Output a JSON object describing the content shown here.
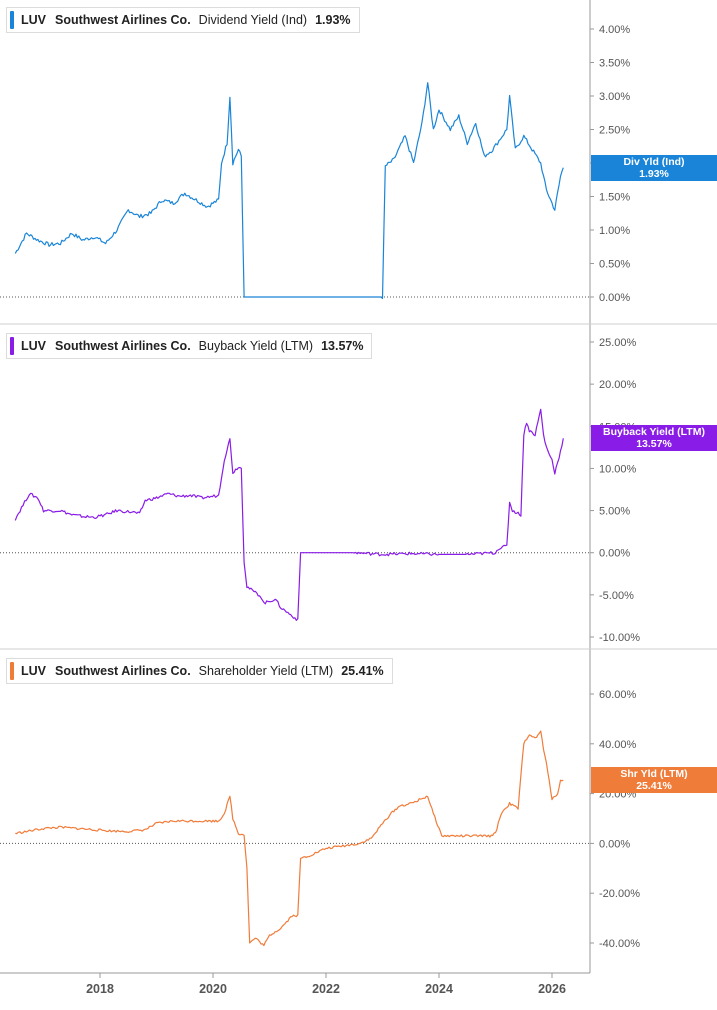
{
  "colors": {
    "dividend": "#1a85d8",
    "buyback": "#8a1ce8",
    "shareholder": "#f07c3a",
    "grid": "#d0d0d0",
    "axis_text": "#555555"
  },
  "x_axis": {
    "ticks": [
      "2018",
      "2020",
      "2022",
      "2024",
      "2026"
    ]
  },
  "panels": [
    {
      "legend": {
        "ticker": "LUV",
        "company": "Southwest Airlines Co.",
        "metric": "Dividend Yield (Ind)",
        "value": "1.93%"
      },
      "flag": {
        "label": "Div Yld (Ind)",
        "value": "1.93%"
      },
      "y_ticks": [
        "4.00%",
        "3.50%",
        "3.00%",
        "2.50%",
        "2.00%",
        "1.50%",
        "1.00%",
        "0.50%",
        "0.00%"
      ]
    },
    {
      "legend": {
        "ticker": "LUV",
        "company": "Southwest Airlines Co.",
        "metric": "Buyback Yield (LTM)",
        "value": "13.57%"
      },
      "flag": {
        "label": "Buyback Yield (LTM)",
        "value": "13.57%"
      },
      "y_ticks": [
        "25.00%",
        "20.00%",
        "15.00%",
        "10.00%",
        "5.00%",
        "0.00%",
        "-5.00%",
        "-10.00%"
      ]
    },
    {
      "legend": {
        "ticker": "LUV",
        "company": "Southwest Airlines Co.",
        "metric": "Shareholder Yield (LTM)",
        "value": "25.41%"
      },
      "flag": {
        "label": "Shr Yld (LTM)",
        "value": "25.41%"
      },
      "y_ticks": [
        "60.00%",
        "40.00%",
        "20.00%",
        "0.00%",
        "-20.00%",
        "-40.00%"
      ]
    }
  ],
  "chart_data": [
    {
      "type": "line",
      "title": "LUV Southwest Airlines Co. Dividend Yield (Ind)",
      "ylim": [
        0,
        4.2
      ],
      "series": [
        {
          "name": "Dividend Yield (Ind)",
          "points": [
            [
              2016.5,
              0.65
            ],
            [
              2016.7,
              0.95
            ],
            [
              2016.9,
              0.85
            ],
            [
              2017.1,
              0.78
            ],
            [
              2017.3,
              0.8
            ],
            [
              2017.5,
              0.95
            ],
            [
              2017.7,
              0.85
            ],
            [
              2017.9,
              0.9
            ],
            [
              2018.1,
              0.8
            ],
            [
              2018.3,
              1.0
            ],
            [
              2018.5,
              1.3
            ],
            [
              2018.7,
              1.2
            ],
            [
              2018.9,
              1.25
            ],
            [
              2019.1,
              1.45
            ],
            [
              2019.3,
              1.4
            ],
            [
              2019.5,
              1.55
            ],
            [
              2019.7,
              1.45
            ],
            [
              2019.9,
              1.35
            ],
            [
              2020.1,
              1.45
            ],
            [
              2020.15,
              2.0
            ],
            [
              2020.25,
              2.3
            ],
            [
              2020.3,
              3.0
            ],
            [
              2020.35,
              2.0
            ],
            [
              2020.45,
              2.2
            ],
            [
              2020.5,
              2.1
            ],
            [
              2020.55,
              0
            ],
            [
              2023.0,
              0
            ],
            [
              2023.05,
              1.95
            ],
            [
              2023.2,
              2.05
            ],
            [
              2023.4,
              2.4
            ],
            [
              2023.55,
              2.0
            ],
            [
              2023.7,
              2.6
            ],
            [
              2023.8,
              3.2
            ],
            [
              2023.9,
              2.5
            ],
            [
              2024.0,
              2.8
            ],
            [
              2024.2,
              2.5
            ],
            [
              2024.35,
              2.7
            ],
            [
              2024.5,
              2.3
            ],
            [
              2024.65,
              2.6
            ],
            [
              2024.8,
              2.1
            ],
            [
              2024.95,
              2.2
            ],
            [
              2025.2,
              2.5
            ],
            [
              2025.25,
              3.0
            ],
            [
              2025.35,
              2.2
            ],
            [
              2025.5,
              2.4
            ],
            [
              2025.65,
              2.2
            ],
            [
              2025.8,
              2.0
            ],
            [
              2025.9,
              1.6
            ],
            [
              2026.0,
              1.4
            ],
            [
              2026.05,
              1.3
            ],
            [
              2026.15,
              1.8
            ],
            [
              2026.2,
              1.93
            ]
          ]
        }
      ]
    },
    {
      "type": "line",
      "title": "LUV Southwest Airlines Co. Buyback Yield (LTM)",
      "ylim": [
        -11,
        27
      ],
      "series": [
        {
          "name": "Buyback Yield (LTM)",
          "points": [
            [
              2016.5,
              4.0
            ],
            [
              2016.75,
              7.0
            ],
            [
              2016.9,
              6.5
            ],
            [
              2017.0,
              5.0
            ],
            [
              2017.3,
              5.0
            ],
            [
              2017.5,
              4.5
            ],
            [
              2017.7,
              4.3
            ],
            [
              2017.9,
              4.2
            ],
            [
              2018.1,
              4.5
            ],
            [
              2018.3,
              5.0
            ],
            [
              2018.6,
              4.8
            ],
            [
              2018.7,
              4.6
            ],
            [
              2018.8,
              6.2
            ],
            [
              2019.0,
              6.5
            ],
            [
              2019.2,
              7.0
            ],
            [
              2019.4,
              6.7
            ],
            [
              2019.6,
              6.8
            ],
            [
              2019.8,
              6.5
            ],
            [
              2020.1,
              6.8
            ],
            [
              2020.15,
              9.0
            ],
            [
              2020.2,
              11.0
            ],
            [
              2020.3,
              13.5
            ],
            [
              2020.35,
              9.5
            ],
            [
              2020.45,
              10.2
            ],
            [
              2020.5,
              10.0
            ],
            [
              2020.55,
              -1.0
            ],
            [
              2020.6,
              -4.0
            ],
            [
              2020.7,
              -4.5
            ],
            [
              2020.85,
              -5.2
            ],
            [
              2020.9,
              -6.0
            ],
            [
              2021.1,
              -5.5
            ],
            [
              2021.2,
              -6.5
            ],
            [
              2021.3,
              -7.0
            ],
            [
              2021.4,
              -7.5
            ],
            [
              2021.5,
              -8.0
            ],
            [
              2021.55,
              0.0
            ],
            [
              2022.5,
              0.0
            ],
            [
              2023.0,
              -0.2
            ],
            [
              2023.5,
              -0.1
            ],
            [
              2024.0,
              -0.2
            ],
            [
              2024.5,
              -0.2
            ],
            [
              2025.0,
              0.0
            ],
            [
              2025.05,
              0.5
            ],
            [
              2025.2,
              0.8
            ],
            [
              2025.25,
              6.0
            ],
            [
              2025.3,
              5.0
            ],
            [
              2025.45,
              4.5
            ],
            [
              2025.5,
              14.0
            ],
            [
              2025.55,
              15.5
            ],
            [
              2025.6,
              14.5
            ],
            [
              2025.7,
              14.0
            ],
            [
              2025.8,
              17.0
            ],
            [
              2025.85,
              14.0
            ],
            [
              2025.9,
              12.5
            ],
            [
              2026.0,
              11.0
            ],
            [
              2026.05,
              9.5
            ],
            [
              2026.15,
              12.0
            ],
            [
              2026.2,
              13.57
            ]
          ]
        }
      ]
    },
    {
      "type": "line",
      "title": "LUV Southwest Airlines Co. Shareholder Yield (LTM)",
      "ylim": [
        -52,
        66
      ],
      "series": [
        {
          "name": "Shareholder Yield (LTM)",
          "points": [
            [
              2016.5,
              4.0
            ],
            [
              2016.75,
              5.0
            ],
            [
              2017.0,
              6.0
            ],
            [
              2017.3,
              6.5
            ],
            [
              2017.6,
              6.0
            ],
            [
              2017.9,
              5.5
            ],
            [
              2018.2,
              5.0
            ],
            [
              2018.5,
              4.8
            ],
            [
              2018.8,
              5.5
            ],
            [
              2019.0,
              8.0
            ],
            [
              2019.3,
              9.0
            ],
            [
              2019.6,
              9.0
            ],
            [
              2019.9,
              9.0
            ],
            [
              2020.1,
              9.0
            ],
            [
              2020.2,
              12.0
            ],
            [
              2020.3,
              19.0
            ],
            [
              2020.35,
              10.0
            ],
            [
              2020.45,
              4.0
            ],
            [
              2020.55,
              3.5
            ],
            [
              2020.6,
              -10.0
            ],
            [
              2020.65,
              -40.0
            ],
            [
              2020.75,
              -38.0
            ],
            [
              2020.9,
              -41.0
            ],
            [
              2021.0,
              -37.0
            ],
            [
              2021.2,
              -34.0
            ],
            [
              2021.4,
              -29.0
            ],
            [
              2021.5,
              -29.0
            ],
            [
              2021.55,
              -6.0
            ],
            [
              2021.7,
              -5.0
            ],
            [
              2022.0,
              -2.0
            ],
            [
              2022.3,
              -1.0
            ],
            [
              2022.6,
              0.0
            ],
            [
              2022.8,
              2.0
            ],
            [
              2022.9,
              5.0
            ],
            [
              2023.0,
              8.0
            ],
            [
              2023.15,
              12.0
            ],
            [
              2023.3,
              15.0
            ],
            [
              2023.5,
              16.0
            ],
            [
              2023.7,
              18.0
            ],
            [
              2023.8,
              19.0
            ],
            [
              2023.9,
              12.0
            ],
            [
              2024.05,
              3.0
            ],
            [
              2024.5,
              3.0
            ],
            [
              2024.9,
              3.0
            ],
            [
              2025.0,
              4.0
            ],
            [
              2025.1,
              12.0
            ],
            [
              2025.25,
              16.0
            ],
            [
              2025.4,
              14.0
            ],
            [
              2025.5,
              40.0
            ],
            [
              2025.6,
              44.0
            ],
            [
              2025.7,
              42.0
            ],
            [
              2025.8,
              45.0
            ],
            [
              2025.85,
              38.0
            ],
            [
              2025.9,
              32.0
            ],
            [
              2026.0,
              18.0
            ],
            [
              2026.1,
              20.0
            ],
            [
              2026.15,
              25.0
            ],
            [
              2026.2,
              25.41
            ]
          ]
        }
      ]
    }
  ]
}
